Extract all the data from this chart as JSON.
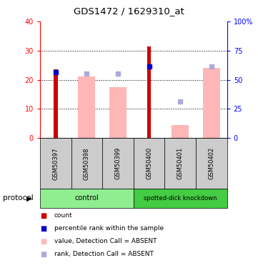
{
  "title": "GDS1472 / 1629310_at",
  "samples": [
    "GSM50397",
    "GSM50398",
    "GSM50399",
    "GSM50400",
    "GSM50401",
    "GSM50402"
  ],
  "red_bars": [
    23.5,
    0,
    0,
    31.5,
    0,
    0
  ],
  "blue_squares_value": [
    22.5,
    0,
    0,
    24.5,
    0,
    0
  ],
  "pink_bars": [
    0,
    21.0,
    17.5,
    0,
    4.5,
    24.0
  ],
  "lightblue_squares_value": [
    0,
    22.0,
    22.0,
    0,
    12.5,
    24.5
  ],
  "ylim_left": [
    0,
    40
  ],
  "ylim_right": [
    0,
    100
  ],
  "yticks_left": [
    0,
    10,
    20,
    30,
    40
  ],
  "ytick_labels_left": [
    "0",
    "10",
    "20",
    "30",
    "40"
  ],
  "yticks_right": [
    0,
    25,
    50,
    75,
    100
  ],
  "ytick_labels_right": [
    "0",
    "25",
    "50",
    "75",
    "100%"
  ],
  "red_color": "#CC0000",
  "blue_color": "#0000CC",
  "pink_color": "#FFB6B6",
  "lightblue_color": "#AAAADD",
  "group_header_bgcolor": "#CCCCCC",
  "control_color": "#90EE90",
  "knockdown_color": "#44CC44",
  "legend_items": [
    {
      "color": "#CC0000",
      "label": "count"
    },
    {
      "color": "#0000CC",
      "label": "percentile rank within the sample"
    },
    {
      "color": "#FFB6B6",
      "label": "value, Detection Call = ABSENT"
    },
    {
      "color": "#AAAADD",
      "label": "rank, Detection Call = ABSENT"
    }
  ]
}
